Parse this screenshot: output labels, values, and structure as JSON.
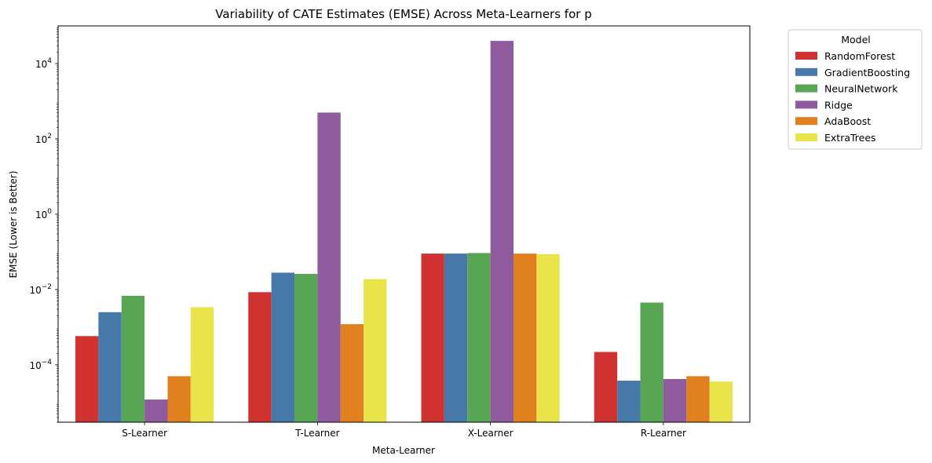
{
  "chart_data": {
    "type": "bar",
    "title": "Variability of CATE Estimates (EMSE) Across Meta-Learners for p",
    "xlabel": "Meta-Learner",
    "ylabel": "EMSE (Lower is Better)",
    "yscale": "log",
    "ylim": [
      3e-06,
      100000.0
    ],
    "yticks": [
      {
        "value": 0.0001,
        "base": "10",
        "exp": "−4"
      },
      {
        "value": 0.01,
        "base": "10",
        "exp": "−2"
      },
      {
        "value": 1,
        "base": "10",
        "exp": "0"
      },
      {
        "value": 100,
        "base": "10",
        "exp": "2"
      },
      {
        "value": 10000,
        "base": "10",
        "exp": "4"
      }
    ],
    "categories": [
      "S-Learner",
      "T-Learner",
      "X-Learner",
      "R-Learner"
    ],
    "legend": {
      "title": "Model",
      "position": "outside-top-right"
    },
    "grid": false,
    "series": [
      {
        "name": "RandomForest",
        "color": "#d03232",
        "values": [
          0.00058,
          0.0085,
          0.09,
          0.00022
        ]
      },
      {
        "name": "GradientBoosting",
        "color": "#4679aa",
        "values": [
          0.0025,
          0.028,
          0.09,
          3.8e-05
        ]
      },
      {
        "name": "NeuralNetwork",
        "color": "#58a553",
        "values": [
          0.0068,
          0.026,
          0.093,
          0.0045
        ]
      },
      {
        "name": "Ridge",
        "color": "#8f5b9e",
        "values": [
          1.2e-05,
          500,
          40000,
          4.2e-05
        ]
      },
      {
        "name": "AdaBoost",
        "color": "#e0801f",
        "values": [
          5e-05,
          0.0012,
          0.09,
          5e-05
        ]
      },
      {
        "name": "ExtraTrees",
        "color": "#e8e44a",
        "values": [
          0.0034,
          0.019,
          0.087,
          3.6e-05
        ]
      }
    ]
  }
}
